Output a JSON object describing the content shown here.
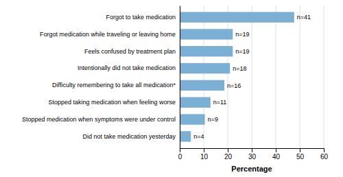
{
  "chart_data": {
    "type": "bar",
    "orientation": "horizontal",
    "categories": [
      "Did not take medication yesterday",
      "Stopped medication when symptoms were under control",
      "Stopped taking medication when feeling worse",
      "Difficulty remembering to take all medication*",
      "Intentionally did not take medication",
      "Feels confused by treatment plan",
      "Forgot medication while traveling or leaving home",
      "Forgot to take medication"
    ],
    "values": [
      4.65,
      10.47,
      12.79,
      18.6,
      20.93,
      22.09,
      22.09,
      47.67
    ],
    "annotations": [
      "n=4",
      "n=9",
      "n=11",
      "n=16",
      "n=18",
      "n=19",
      "n=19",
      "n=41"
    ],
    "color": "#7bafd4",
    "xlabel": "Percentage",
    "xlim": [
      0,
      60
    ],
    "xticks": [
      0,
      10,
      20,
      30,
      40,
      50,
      60
    ],
    "grid": true
  }
}
